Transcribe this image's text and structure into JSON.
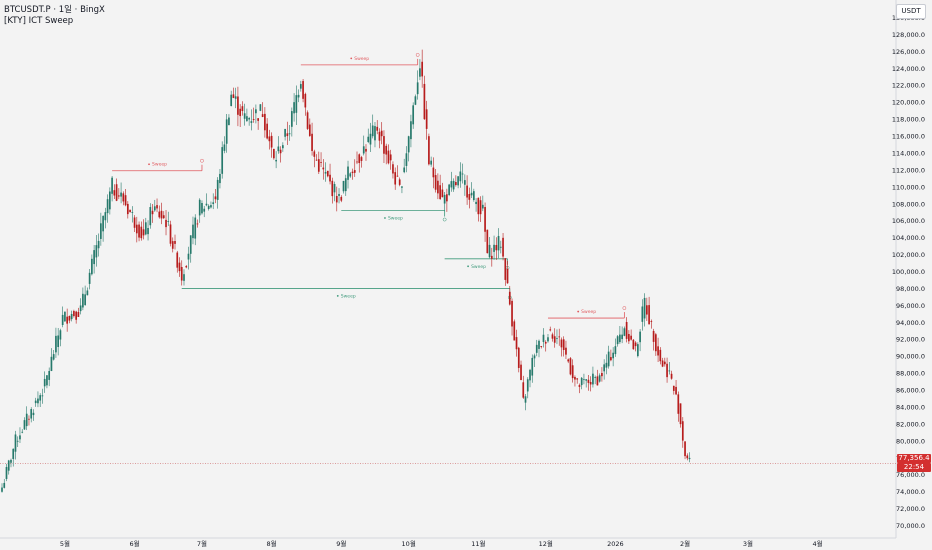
{
  "legend": {
    "line1": "BTCUSDT.P · 1일 · BingX",
    "line2": "[KTY] ICT Sweep"
  },
  "price_axis": {
    "unit": "USDT"
  },
  "last_price": {
    "value": "77,356.4",
    "countdown": "22:54",
    "color": "#d32f2f"
  },
  "colors": {
    "up": "#26796b",
    "down": "#b71c1c",
    "sweep_high": "#e05a5f",
    "sweep_low": "#3f9a7c",
    "background": "#f3f3f3"
  },
  "chart_data": {
    "type": "candlestick",
    "y_ticks": [
      70000,
      72000,
      74000,
      76000,
      78000,
      80000,
      82000,
      84000,
      86000,
      88000,
      90000,
      92000,
      94000,
      96000,
      98000,
      100000,
      102000,
      104000,
      106000,
      108000,
      110000,
      112000,
      114000,
      116000,
      118000,
      120000,
      122000,
      124000,
      126000,
      128000,
      130000
    ],
    "y_tick_labels": [
      "70,000.0",
      "72,000.0",
      "74,000.0",
      "76,000.0",
      "78,000.0",
      "80,000.0",
      "82,000.0",
      "84,000.0",
      "86,000.0",
      "88,000.0",
      "90,000.0",
      "92,000.0",
      "94,000.0",
      "96,000.0",
      "98,000.0",
      "100,000.0",
      "102,000.0",
      "104,000.0",
      "106,000.0",
      "108,000.0",
      "110,000.0",
      "112,000.0",
      "114,000.0",
      "116,000.0",
      "118,000.0",
      "120,000.0",
      "122,000.0",
      "124,000.0",
      "126,000.0",
      "128,000.0",
      "130,000.0"
    ],
    "ylim": [
      69000,
      131000
    ],
    "x_labels": [
      "5월",
      "6월",
      "7월",
      "8월",
      "9월",
      "10월",
      "11월",
      "12월",
      "2026",
      "2월",
      "3월",
      "4월"
    ],
    "x_label_dates": [
      "2025-05-01",
      "2025-06-01",
      "2025-07-01",
      "2025-08-01",
      "2025-09-01",
      "2025-10-01",
      "2025-11-01",
      "2025-12-01",
      "2026-01-01",
      "2026-02-01",
      "2026-03-01",
      "2026-04-01"
    ],
    "x_range": [
      "2025-04-03",
      "2026-05-05"
    ],
    "anchors": [
      [
        "2025-04-03",
        74500
      ],
      [
        "2025-04-09",
        80000
      ],
      [
        "2025-04-22",
        86500
      ],
      [
        "2025-04-30",
        94500
      ],
      [
        "2025-05-08",
        95500
      ],
      [
        "2025-05-22",
        110000
      ],
      [
        "2025-05-27",
        108500
      ],
      [
        "2025-06-05",
        104000
      ],
      [
        "2025-06-09",
        107500
      ],
      [
        "2025-06-15",
        106000
      ],
      [
        "2025-06-22",
        99500
      ],
      [
        "2025-06-30",
        107500
      ],
      [
        "2025-07-07",
        108500
      ],
      [
        "2025-07-14",
        121000
      ],
      [
        "2025-07-20",
        118000
      ],
      [
        "2025-07-28",
        119000
      ],
      [
        "2025-08-02",
        113000
      ],
      [
        "2025-08-09",
        117000
      ],
      [
        "2025-08-14",
        123000
      ],
      [
        "2025-08-19",
        114000
      ],
      [
        "2025-08-31",
        108500
      ],
      [
        "2025-09-04",
        111500
      ],
      [
        "2025-09-17",
        117000
      ],
      [
        "2025-09-27",
        109500
      ],
      [
        "2025-10-01",
        116000
      ],
      [
        "2025-10-06",
        124800
      ],
      [
        "2025-10-10",
        113000
      ],
      [
        "2025-10-16",
        108500
      ],
      [
        "2025-10-24",
        111000
      ],
      [
        "2025-11-03",
        107000
      ],
      [
        "2025-11-05",
        102000
      ],
      [
        "2025-11-11",
        103500
      ],
      [
        "2025-11-17",
        92500
      ],
      [
        "2025-11-21",
        84500
      ],
      [
        "2025-11-26",
        90500
      ],
      [
        "2025-12-03",
        93000
      ],
      [
        "2025-12-08",
        91500
      ],
      [
        "2025-12-15",
        86500
      ],
      [
        "2025-12-25",
        87500
      ],
      [
        "2026-01-05",
        93500
      ],
      [
        "2026-01-10",
        90500
      ],
      [
        "2026-01-14",
        96500
      ],
      [
        "2026-01-21",
        89500
      ],
      [
        "2026-01-25",
        88000
      ],
      [
        "2026-01-29",
        84000
      ],
      [
        "2026-02-01",
        78500
      ],
      [
        "2026-02-03",
        77356
      ]
    ],
    "sweeps": [
      {
        "type": "high",
        "label": "Sweep",
        "level": 111900,
        "start": "2025-05-22",
        "end": "2025-07-01"
      },
      {
        "type": "high",
        "label": "Sweep",
        "level": 124400,
        "start": "2025-08-14",
        "end": "2025-10-05"
      },
      {
        "type": "low",
        "label": "Sweep",
        "level": 98000,
        "start": "2025-06-22",
        "end": "2025-11-15"
      },
      {
        "type": "low",
        "label": "Sweep",
        "level": 107200,
        "start": "2025-09-01",
        "end": "2025-10-17"
      },
      {
        "type": "low",
        "label": "Sweep",
        "level": 101500,
        "start": "2025-10-17",
        "end": "2025-11-14"
      },
      {
        "type": "high",
        "label": "Sweep",
        "level": 94500,
        "start": "2025-12-02",
        "end": "2026-01-05"
      }
    ],
    "last_price_level": 77356.4,
    "grid": false,
    "legend_position": "top-left"
  }
}
